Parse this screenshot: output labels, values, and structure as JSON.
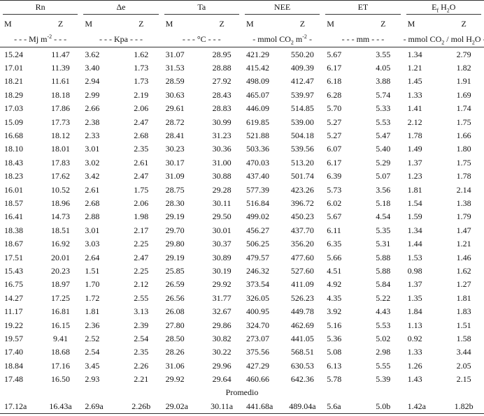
{
  "header": {
    "groups": [
      [
        {
          "text": "Rn"
        }
      ],
      [
        {
          "text": "Δe"
        }
      ],
      [
        {
          "text": "Ta"
        }
      ],
      [
        {
          "text": "NEE"
        }
      ],
      [
        {
          "text": "ET"
        }
      ],
      [
        {
          "text": "E"
        },
        {
          "text": "f",
          "pos": "sub"
        },
        {
          "text": " H"
        },
        {
          "text": "2",
          "pos": "sub"
        },
        {
          "text": "O"
        }
      ]
    ],
    "subheaders": [
      "M",
      "Z",
      "M",
      "Z",
      "M",
      "Z",
      "M",
      "Z",
      "M",
      "Z",
      "M",
      "Z"
    ],
    "units": [
      [
        {
          "text": "- - - Mj m"
        },
        {
          "text": "-2",
          "pos": "sup"
        },
        {
          "text": " - - -"
        }
      ],
      [
        {
          "text": "- - - Kpa - - -"
        }
      ],
      [
        {
          "text": "- - - °C - - -"
        }
      ],
      [
        {
          "text": "- mmol CO"
        },
        {
          "text": "2",
          "pos": "sub"
        },
        {
          "text": " m"
        },
        {
          "text": "-2",
          "pos": "sup"
        },
        {
          "text": " -"
        }
      ],
      [
        {
          "text": "- - - mm - - -"
        }
      ],
      [
        {
          "text": "- mmol CO"
        },
        {
          "text": "2",
          "pos": "sub"
        },
        {
          "text": " / mol H"
        },
        {
          "text": "2",
          "pos": "sub"
        },
        {
          "text": "O -"
        }
      ]
    ]
  },
  "table": {
    "rows": [
      [
        "15.24",
        "11.47",
        "3.62",
        "1.62",
        "31.07",
        "28.95",
        "421.29",
        "550.20",
        "5.67",
        "3.55",
        "1.34",
        "2.79"
      ],
      [
        "17.01",
        "11.39",
        "3.40",
        "1.73",
        "31.53",
        "28.88",
        "415.42",
        "409.39",
        "6.17",
        "4.05",
        "1.21",
        "1.82"
      ],
      [
        "18.21",
        "11.61",
        "2.94",
        "1.73",
        "28.59",
        "27.92",
        "498.09",
        "412.47",
        "6.18",
        "3.88",
        "1.45",
        "1.91"
      ],
      [
        "18.29",
        "18.18",
        "2.99",
        "2.19",
        "30.63",
        "28.43",
        "465.07",
        "539.97",
        "6.28",
        "5.74",
        "1.33",
        "1.69"
      ],
      [
        "17.03",
        "17.86",
        "2.66",
        "2.06",
        "29.61",
        "28.83",
        "446.09",
        "514.85",
        "5.70",
        "5.33",
        "1.41",
        "1.74"
      ],
      [
        "15.09",
        "17.73",
        "2.38",
        "2.47",
        "28.72",
        "30.99",
        "619.85",
        "539.00",
        "5.27",
        "5.53",
        "2.12",
        "1.75"
      ],
      [
        "16.68",
        "18.12",
        "2.33",
        "2.68",
        "28.41",
        "31.23",
        "521.88",
        "504.18",
        "5.27",
        "5.47",
        "1.78",
        "1.66"
      ],
      [
        "18.10",
        "18.01",
        "3.01",
        "2.35",
        "30.23",
        "30.36",
        "503.36",
        "539.56",
        "6.07",
        "5.40",
        "1.49",
        "1.80"
      ],
      [
        "18.43",
        "17.83",
        "3.02",
        "2.61",
        "30.17",
        "31.00",
        "470.03",
        "513.20",
        "6.17",
        "5.29",
        "1.37",
        "1.75"
      ],
      [
        "18.23",
        "17.62",
        "3.42",
        "2.47",
        "31.09",
        "30.88",
        "437.40",
        "501.74",
        "6.39",
        "5.07",
        "1.23",
        "1.78"
      ],
      [
        "16.01",
        "10.52",
        "2.61",
        "1.75",
        "28.75",
        "29.28",
        "577.39",
        "423.26",
        "5.73",
        "3.56",
        "1.81",
        "2.14"
      ],
      [
        "18.57",
        "18.96",
        "2.68",
        "2.06",
        "28.30",
        "30.11",
        "516.84",
        "396.72",
        "6.02",
        "5.18",
        "1.54",
        "1.38"
      ],
      [
        "16.41",
        "14.73",
        "2.88",
        "1.98",
        "29.19",
        "29.50",
        "499.02",
        "450.23",
        "5.67",
        "4.54",
        "1.59",
        "1.79"
      ],
      [
        "18.38",
        "18.51",
        "3.01",
        "2.17",
        "29.70",
        "30.01",
        "456.27",
        "437.70",
        "6.11",
        "5.35",
        "1.34",
        "1.47"
      ],
      [
        "18.67",
        "16.92",
        "3.03",
        "2.25",
        "29.80",
        "30.37",
        "506.25",
        "356.20",
        "6.35",
        "5.31",
        "1.44",
        "1.21"
      ],
      [
        "17.51",
        "20.01",
        "2.64",
        "2.47",
        "29.19",
        "30.89",
        "479.57",
        "477.60",
        "5.66",
        "5.88",
        "1.53",
        "1.46"
      ],
      [
        "15.43",
        "20.23",
        "1.51",
        "2.25",
        "25.85",
        "30.19",
        "246.32",
        "527.60",
        "4.51",
        "5.88",
        "0.98",
        "1.62"
      ],
      [
        "16.75",
        "18.97",
        "1.70",
        "2.12",
        "26.59",
        "29.92",
        "373.54",
        "411.09",
        "4.92",
        "5.84",
        "1.37",
        "1.27"
      ],
      [
        "14.27",
        "17.25",
        "1.72",
        "2.55",
        "26.56",
        "31.77",
        "326.05",
        "526.23",
        "4.35",
        "5.22",
        "1.35",
        "1.81"
      ],
      [
        "11.17",
        "16.81",
        "1.81",
        "3.13",
        "26.08",
        "32.67",
        "400.95",
        "449.78",
        "3.92",
        "4.43",
        "1.84",
        "1.83"
      ],
      [
        "19.22",
        "16.15",
        "2.36",
        "2.39",
        "27.80",
        "29.86",
        "324.70",
        "462.69",
        "5.16",
        "5.53",
        "1.13",
        "1.51"
      ],
      [
        "19.57",
        "9.41",
        "2.52",
        "2.54",
        "28.50",
        "30.82",
        "273.07",
        "441.05",
        "5.36",
        "5.02",
        "0.92",
        "1.58"
      ],
      [
        "17.40",
        "18.68",
        "2.54",
        "2.35",
        "28.26",
        "30.22",
        "375.56",
        "568.51",
        "5.08",
        "2.98",
        "1.33",
        "3.44"
      ],
      [
        "18.84",
        "17.16",
        "3.45",
        "2.26",
        "31.06",
        "29.96",
        "427.29",
        "630.53",
        "6.13",
        "5.55",
        "1.26",
        "2.05"
      ],
      [
        "17.48",
        "16.50",
        "2.93",
        "2.21",
        "29.92",
        "29.64",
        "460.66",
        "642.36",
        "5.78",
        "5.39",
        "1.43",
        "2.15"
      ]
    ],
    "summary_label": "Promedio",
    "summary": [
      "17.12a",
      "16.43a",
      "2.69a",
      "2.26b",
      "29.02a",
      "30.11a",
      "441.68a",
      "489.04a",
      "5.6a",
      "5.0b",
      "1.42a",
      "1.82b"
    ]
  }
}
